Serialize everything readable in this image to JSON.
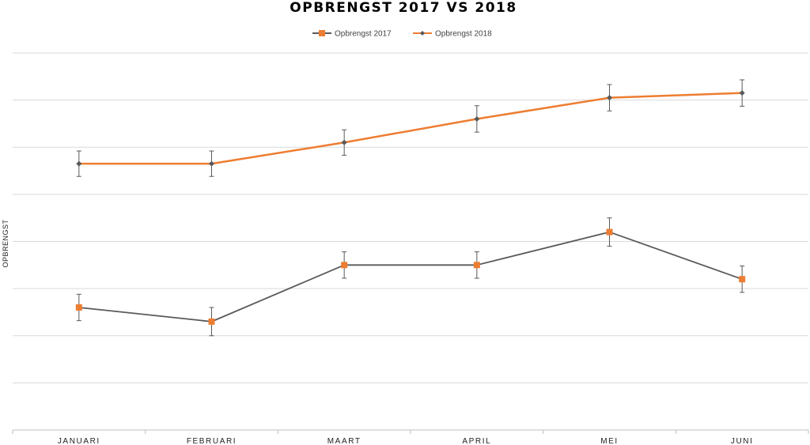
{
  "chart_data": {
    "type": "line",
    "title": "OPBRENGST 2017 VS 2018",
    "xlabel": "",
    "ylabel": "OPBRENGST",
    "categories": [
      "JANUARI",
      "FEBRUARI",
      "MAART",
      "APRIL",
      "MEI",
      "JUNI"
    ],
    "ylim": [
      0,
      8
    ],
    "grid_lines": 8,
    "grid": true,
    "legend_position": "top",
    "error_bars": true,
    "series": [
      {
        "name": "Opbrengst 2017",
        "values": [
          2.6,
          2.3,
          3.5,
          3.5,
          4.2,
          3.2
        ],
        "error": [
          0.28,
          0.3,
          0.28,
          0.28,
          0.3,
          0.28
        ],
        "line_color": "#595959",
        "marker": "square",
        "marker_color": "#ED7D31"
      },
      {
        "name": "Opbrengst 2018",
        "values": [
          5.65,
          5.65,
          6.1,
          6.6,
          7.05,
          7.15
        ],
        "error": [
          0.27,
          0.27,
          0.27,
          0.28,
          0.28,
          0.28
        ],
        "line_color": "#ED7D31",
        "marker": "diamond",
        "marker_color": "#595959"
      }
    ]
  }
}
